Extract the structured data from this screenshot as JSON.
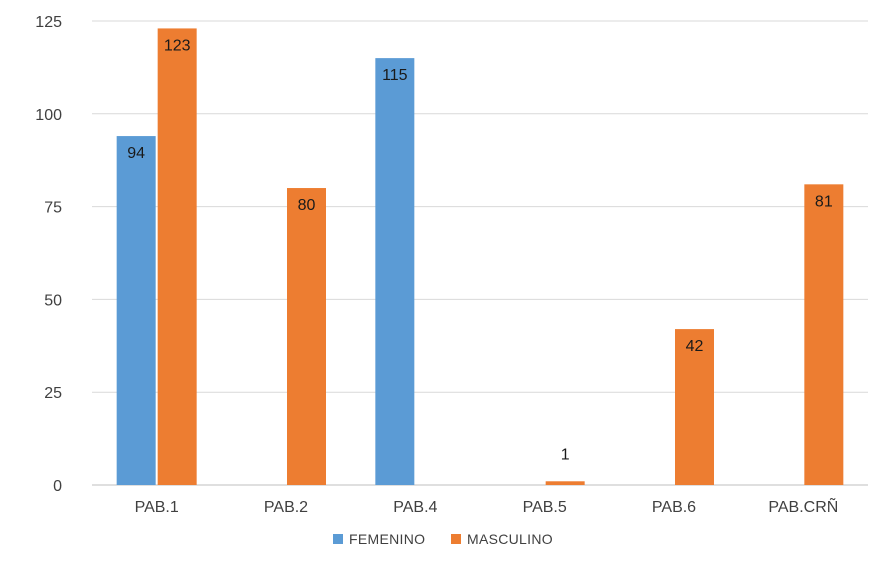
{
  "chart_data": {
    "type": "bar",
    "categories": [
      "PAB.1",
      "PAB.2",
      "PAB.4",
      "PAB.5",
      "PAB.6",
      "PAB.CRÑ"
    ],
    "series": [
      {
        "name": "FEMENINO",
        "color": "#5B9BD5",
        "values": [
          94,
          null,
          115,
          null,
          null,
          null
        ]
      },
      {
        "name": "MASCULINO",
        "color": "#ED7D31",
        "values": [
          123,
          80,
          null,
          1,
          42,
          81
        ]
      }
    ],
    "y_ticks": [
      "0",
      "25",
      "50",
      "75",
      "100",
      "125"
    ],
    "ylim": [
      0,
      125
    ],
    "grid": true,
    "legend_position": "bottom",
    "gridline_color": "#d9d9d9",
    "axis_color": "#bfbfbf"
  }
}
